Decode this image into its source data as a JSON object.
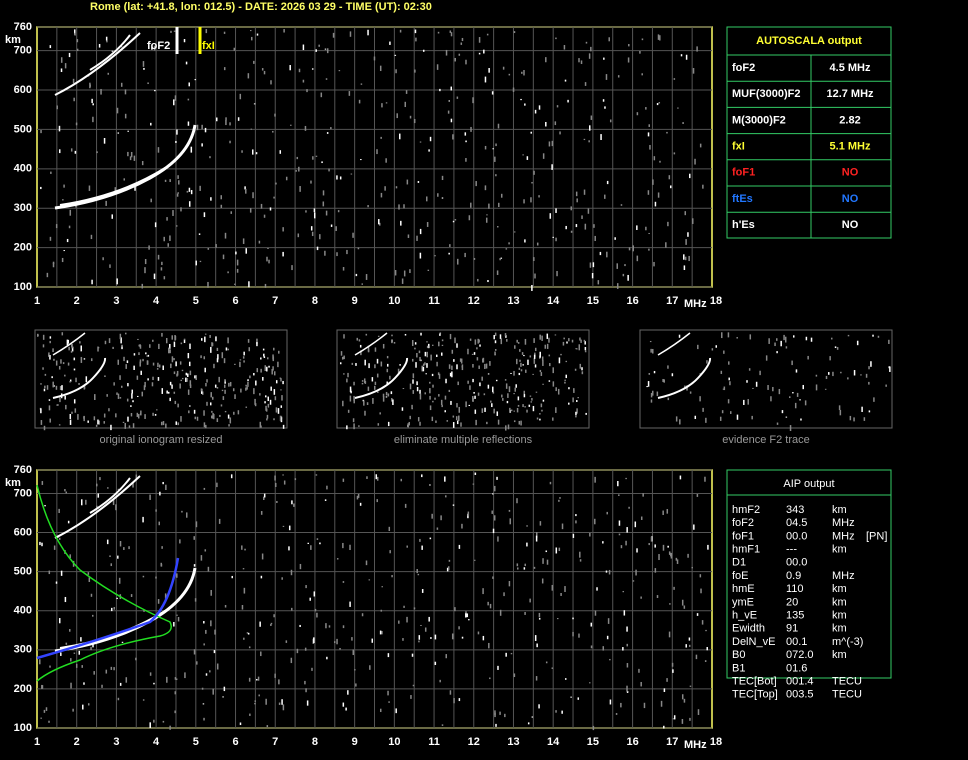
{
  "header": {
    "title": "Rome (lat: +41.8, lon: 012.5) - DATE: 2026 03 29 - TIME (UT): 02:30"
  },
  "ionogram_top": {
    "y_unit": "km",
    "x_unit": "MHz",
    "yticks": [
      100,
      200,
      300,
      400,
      500,
      600,
      700,
      760
    ],
    "xticks": [
      1,
      2,
      3,
      4,
      5,
      6,
      7,
      8,
      9,
      10,
      11,
      12,
      13,
      14,
      15,
      16,
      17,
      18
    ],
    "labels": [
      "foF2",
      "fxI"
    ]
  },
  "ionogram_bottom": {
    "y_unit": "km",
    "x_unit": "MHz",
    "yticks": [
      100,
      200,
      300,
      400,
      500,
      600,
      700,
      760
    ],
    "xticks": [
      1,
      2,
      3,
      4,
      5,
      6,
      7,
      8,
      9,
      10,
      11,
      12,
      13,
      14,
      15,
      16,
      17,
      18
    ]
  },
  "thumbnails": [
    "original ionogram resized",
    "eliminate multiple reflections",
    "evidence F2 trace"
  ],
  "autoscala": {
    "title": "AUTOSCALA output",
    "rows": [
      [
        "foF2",
        "4.5 MHz"
      ],
      [
        "MUF(3000)F2",
        "12.7 MHz"
      ],
      [
        "M(3000)F2",
        "2.82"
      ],
      [
        "fxI",
        "5.1 MHz"
      ],
      [
        "foF1",
        "NO"
      ],
      [
        "ftEs",
        "NO"
      ],
      [
        "h'Es",
        "NO"
      ]
    ]
  },
  "aip": {
    "title": "AIP output",
    "rows": [
      [
        "hmF2",
        "343",
        "km"
      ],
      [
        "foF2",
        "04.5",
        "MHz"
      ],
      [
        "foF1",
        "00.0",
        "MHz",
        "[PN]"
      ],
      [
        "hmF1",
        "---",
        "km"
      ],
      [
        "D1",
        "00.0"
      ],
      [
        "foE",
        "0.9",
        "MHz"
      ],
      [
        "hmE",
        "110",
        "km"
      ],
      [
        "ymE",
        "20",
        "km"
      ],
      [
        "h_vE",
        "135",
        "km"
      ],
      [
        "Ewidth",
        "91",
        "km"
      ],
      [
        "DelN_vE",
        "00.1",
        "m^(-3)"
      ],
      [
        "B0",
        "072.0",
        "km"
      ],
      [
        "B1",
        "01.6"
      ],
      [
        "TEC[Bot]",
        "001.4",
        "TECU"
      ],
      [
        "TEC[Top]",
        "003.5",
        "TECU"
      ]
    ]
  }
}
